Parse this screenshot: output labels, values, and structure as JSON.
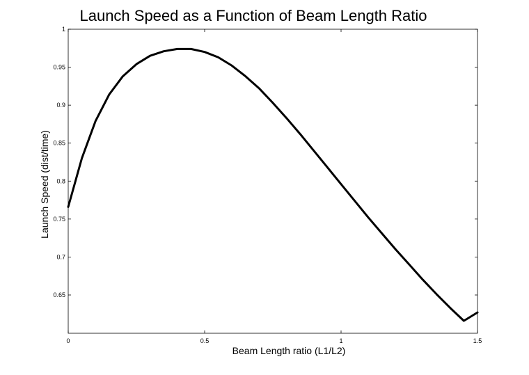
{
  "chart_data": {
    "type": "line",
    "title": "Launch Speed as a Function of Beam Length Ratio",
    "xlabel": "Beam Length ratio (L1/L2)",
    "ylabel": "Launch Speed (dist/time)",
    "xlim": [
      0,
      1.5
    ],
    "ylim": [
      0.62,
      1.0
    ],
    "xticks": [
      0,
      0.5,
      1,
      1.5
    ],
    "xtick_labels": [
      "0",
      "0.5",
      "1",
      "1.5"
    ],
    "yticks": [
      0.65,
      0.7,
      0.75,
      0.8,
      0.85,
      0.9,
      0.95,
      1
    ],
    "ytick_labels": [
      "0.65",
      "0.7",
      "0.75",
      "0.8",
      "0.85",
      "0.9",
      "0.95",
      "1"
    ],
    "grid": false,
    "line_color": "#000000",
    "series": [
      {
        "x": [
          0,
          0.05,
          0.1,
          0.15,
          0.2,
          0.25,
          0.3,
          0.35,
          0.4,
          0.45,
          0.5,
          0.55,
          0.6,
          0.65,
          0.7,
          0.75,
          0.8,
          0.85,
          0.9,
          0.95,
          1.0,
          1.05,
          1.1,
          1.15,
          1.2,
          1.25,
          1.3,
          1.35,
          1.4,
          1.45,
          1.5
        ],
        "y": [
          0.766,
          0.83,
          0.879,
          0.914,
          0.938,
          0.954,
          0.965,
          0.971,
          0.974,
          0.974,
          0.97,
          0.963,
          0.952,
          0.938,
          0.922,
          0.903,
          0.883,
          0.862,
          0.84,
          0.818,
          0.796,
          0.774,
          0.752,
          0.731,
          0.71,
          0.69,
          0.67,
          0.651,
          0.633,
          0.616,
          0.627
        ]
      }
    ]
  }
}
